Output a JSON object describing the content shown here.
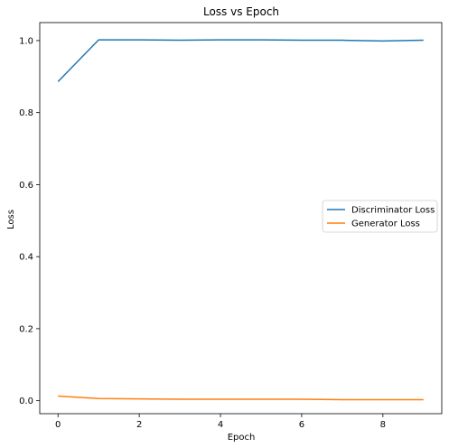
{
  "chart_data": {
    "type": "line",
    "title": "Loss vs Epoch",
    "xlabel": "Epoch",
    "ylabel": "Loss",
    "x": [
      0,
      1,
      2,
      3,
      4,
      5,
      6,
      7,
      8,
      9
    ],
    "xlim": [
      -0.45,
      9.45
    ],
    "ylim": [
      -0.036,
      1.05
    ],
    "xticks": [
      0,
      2,
      4,
      6,
      8
    ],
    "yticks": [
      0.0,
      0.2,
      0.4,
      0.6,
      0.8,
      1.0
    ],
    "xtick_labels": [
      "0",
      "2",
      "4",
      "6",
      "8"
    ],
    "ytick_labels": [
      "0.0",
      "0.2",
      "0.4",
      "0.6",
      "0.8",
      "1.0"
    ],
    "grid": false,
    "legend_position": "center-right",
    "series": [
      {
        "name": "Discriminator Loss",
        "color": "#1f77b4",
        "values": [
          0.886,
          1.002,
          1.002,
          1.001,
          1.002,
          1.002,
          1.001,
          1.001,
          0.999,
          1.001
        ]
      },
      {
        "name": "Generator Loss",
        "color": "#ff7f0e",
        "values": [
          0.013,
          0.006,
          0.005,
          0.004,
          0.004,
          0.004,
          0.004,
          0.003,
          0.003,
          0.003
        ]
      }
    ]
  }
}
